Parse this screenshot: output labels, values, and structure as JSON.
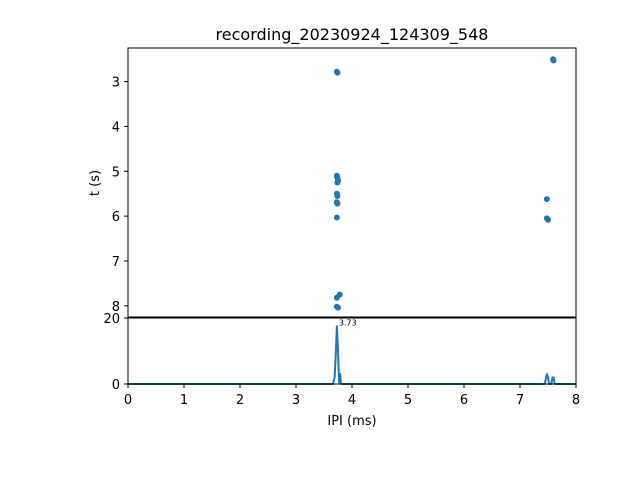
{
  "chart_data": [
    {
      "type": "scatter",
      "title": "recording_20230924_124309_548",
      "xlabel": "",
      "ylabel": "t (s)",
      "xlim": [
        0,
        8
      ],
      "ylim": [
        8.25,
        2.25
      ],
      "y_inverted": true,
      "yticks": [
        3,
        4,
        5,
        6,
        7,
        8
      ],
      "color": "#1f77b4",
      "points": [
        {
          "x": 3.73,
          "y": 2.78
        },
        {
          "x": 3.74,
          "y": 2.8
        },
        {
          "x": 3.73,
          "y": 5.1
        },
        {
          "x": 3.74,
          "y": 5.15
        },
        {
          "x": 3.75,
          "y": 5.21
        },
        {
          "x": 3.74,
          "y": 5.25
        },
        {
          "x": 3.73,
          "y": 5.5
        },
        {
          "x": 3.74,
          "y": 5.55
        },
        {
          "x": 3.73,
          "y": 5.69
        },
        {
          "x": 3.74,
          "y": 5.72
        },
        {
          "x": 3.73,
          "y": 6.03
        },
        {
          "x": 3.73,
          "y": 7.82
        },
        {
          "x": 3.78,
          "y": 7.75
        },
        {
          "x": 3.73,
          "y": 8.02
        },
        {
          "x": 3.75,
          "y": 8.04
        },
        {
          "x": 7.59,
          "y": 2.5
        },
        {
          "x": 7.6,
          "y": 2.53
        },
        {
          "x": 7.48,
          "y": 5.62
        },
        {
          "x": 7.48,
          "y": 6.05
        },
        {
          "x": 7.5,
          "y": 6.08
        }
      ]
    },
    {
      "type": "line",
      "xlabel": "IPI (ms)",
      "ylabel": "",
      "xlim": [
        0,
        8
      ],
      "ylim": [
        0,
        20
      ],
      "xticks": [
        0,
        1,
        2,
        3,
        4,
        5,
        6,
        7,
        8
      ],
      "yticks": [
        0,
        20
      ],
      "color": "#1f77b4",
      "x": [
        0,
        3.66,
        3.69,
        3.71,
        3.73,
        3.75,
        3.77,
        3.78,
        3.79,
        3.8,
        3.81,
        3.83,
        7.44,
        7.46,
        7.48,
        7.5,
        7.52,
        7.56,
        7.58,
        7.6,
        7.62,
        8
      ],
      "y": [
        0,
        0,
        2,
        9,
        17.5,
        10,
        0.5,
        3,
        3,
        0.5,
        0,
        0,
        0,
        1.5,
        3,
        2,
        0,
        0,
        2,
        2,
        0,
        0
      ],
      "annotation": {
        "x": 3.73,
        "y": 17.5,
        "text": "3.73"
      }
    }
  ]
}
